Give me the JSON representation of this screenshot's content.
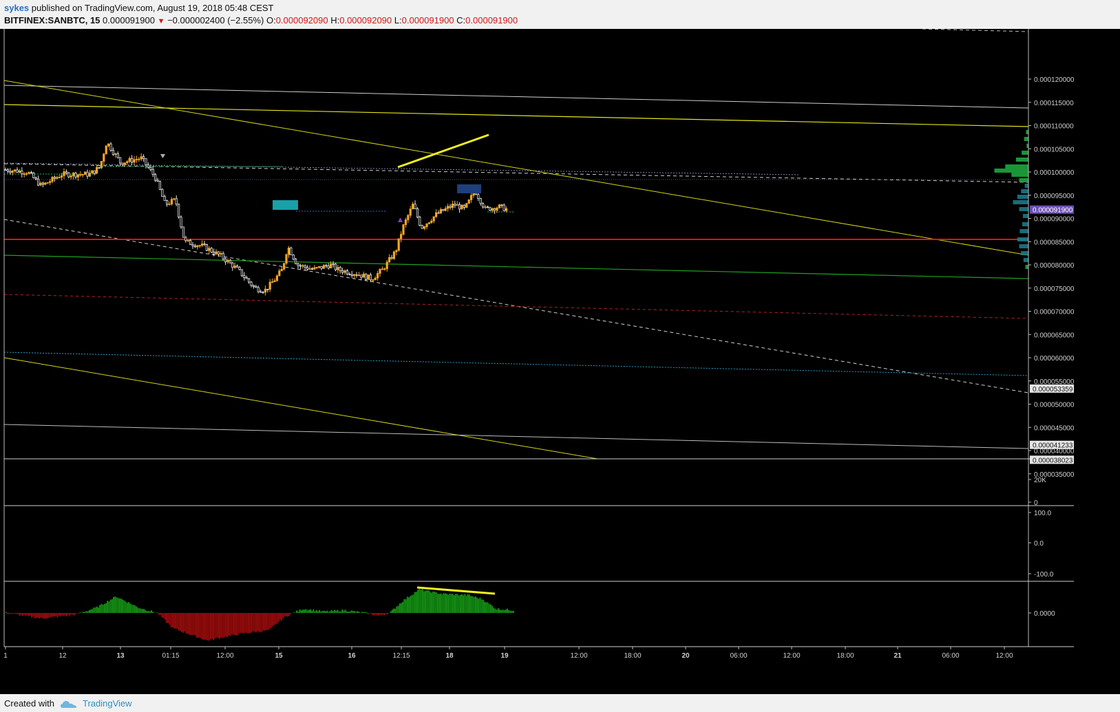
{
  "header": {
    "user": "sykes",
    "published": "published on TradingView.com, August 19, 2018 05:48 CEST",
    "symbol": "BITFINEX:SANBTC, 15",
    "last": "0.000091900",
    "change": "−0.000002400 (−2.55%)",
    "o_label": "O:",
    "o_value": "0.000092090",
    "h_label": "H:",
    "h_value": "0.000092090",
    "l_label": "L:",
    "l_value": "0.000091900",
    "c_label": "C:",
    "c_value": "0.000091900"
  },
  "footer": {
    "created_with": "Created with",
    "brand": "TradingView"
  },
  "chart_data": {
    "type": "candlestick",
    "symbol": "BITFINEX:SANBTC",
    "interval": "15",
    "price_axis": {
      "ticks": [
        "0.000120000",
        "0.000115000",
        "0.000110000",
        "0.000105000",
        "0.000100000",
        "0.000095000",
        "0.000090000",
        "0.000085000",
        "0.000080000",
        "0.000075000",
        "0.000070000",
        "0.000065000",
        "0.000060000",
        "0.000055000",
        "0.000050000",
        "0.000045000",
        "0.000040000",
        "0.000035000"
      ],
      "ylim": [
        3.35e-05,
        0.0001245
      ],
      "grid": false
    },
    "price_labels": [
      {
        "text": "0.000091900",
        "value": 9.19e-05,
        "bg": "#6e4fb3",
        "fg": "#ffffff"
      },
      {
        "text": "0.000053359",
        "value": 5.3359e-05,
        "bg": "#e6e6e6",
        "fg": "#111111"
      },
      {
        "text": "0.000041233",
        "value": 4.1233e-05,
        "bg": "#e6e6e6",
        "fg": "#111111"
      },
      {
        "text": "0.000038023",
        "value": 3.8023e-05,
        "bg": "#e6e6e6",
        "fg": "#111111"
      }
    ],
    "time_axis": {
      "labels": [
        "1",
        "12",
        "13",
        "01:15",
        "12:00",
        "15",
        "16",
        "12:15",
        "18",
        "19",
        "12:00",
        "18:00",
        "20",
        "06:00",
        "12:00",
        "18:00",
        "21",
        "06:00",
        "12:00"
      ]
    },
    "price_series_approx": [
      {
        "date": "Aug 11",
        "value": 0.0001005
      },
      {
        "date": "Aug 12",
        "value": 9.95e-05
      },
      {
        "date": "Aug 12 late",
        "value": 0.0001065
      },
      {
        "date": "Aug 13",
        "value": 0.000102
      },
      {
        "date": "Aug 13 01:15",
        "value": 9.35e-05
      },
      {
        "date": "Aug 13 mid",
        "value": 8.45e-05
      },
      {
        "date": "Aug 14 12:00",
        "value": 7.85e-05
      },
      {
        "date": "Aug 14 late",
        "value": 7.45e-05
      },
      {
        "date": "Aug 15",
        "value": 7.9e-05
      },
      {
        "date": "Aug 16",
        "value": 7.9e-05
      },
      {
        "date": "Aug 16 late",
        "value": 7.7e-05
      },
      {
        "date": "Aug 17 12:15",
        "value": 8.8e-05
      },
      {
        "date": "Aug 17 mid",
        "value": 9.35e-05
      },
      {
        "date": "Aug 18",
        "value": 9.2e-05
      },
      {
        "date": "Aug 18 late",
        "value": 9.6e-05
      },
      {
        "date": "Aug 19",
        "value": 9.19e-05
      }
    ],
    "horizontal_levels": [
      {
        "value": 7.9e-05,
        "color": "#e81010",
        "style": "solid"
      }
    ],
    "volume_pane": {
      "ticks": [
        "20K",
        "0"
      ]
    },
    "oscillator_pane": {
      "ticks": [
        "100.0",
        "0.0",
        "-100.0"
      ]
    },
    "histogram_pane": {
      "ticks": [
        "0.0000"
      ],
      "positive_color": "#18b018",
      "negative_color": "#b80e0e"
    }
  }
}
